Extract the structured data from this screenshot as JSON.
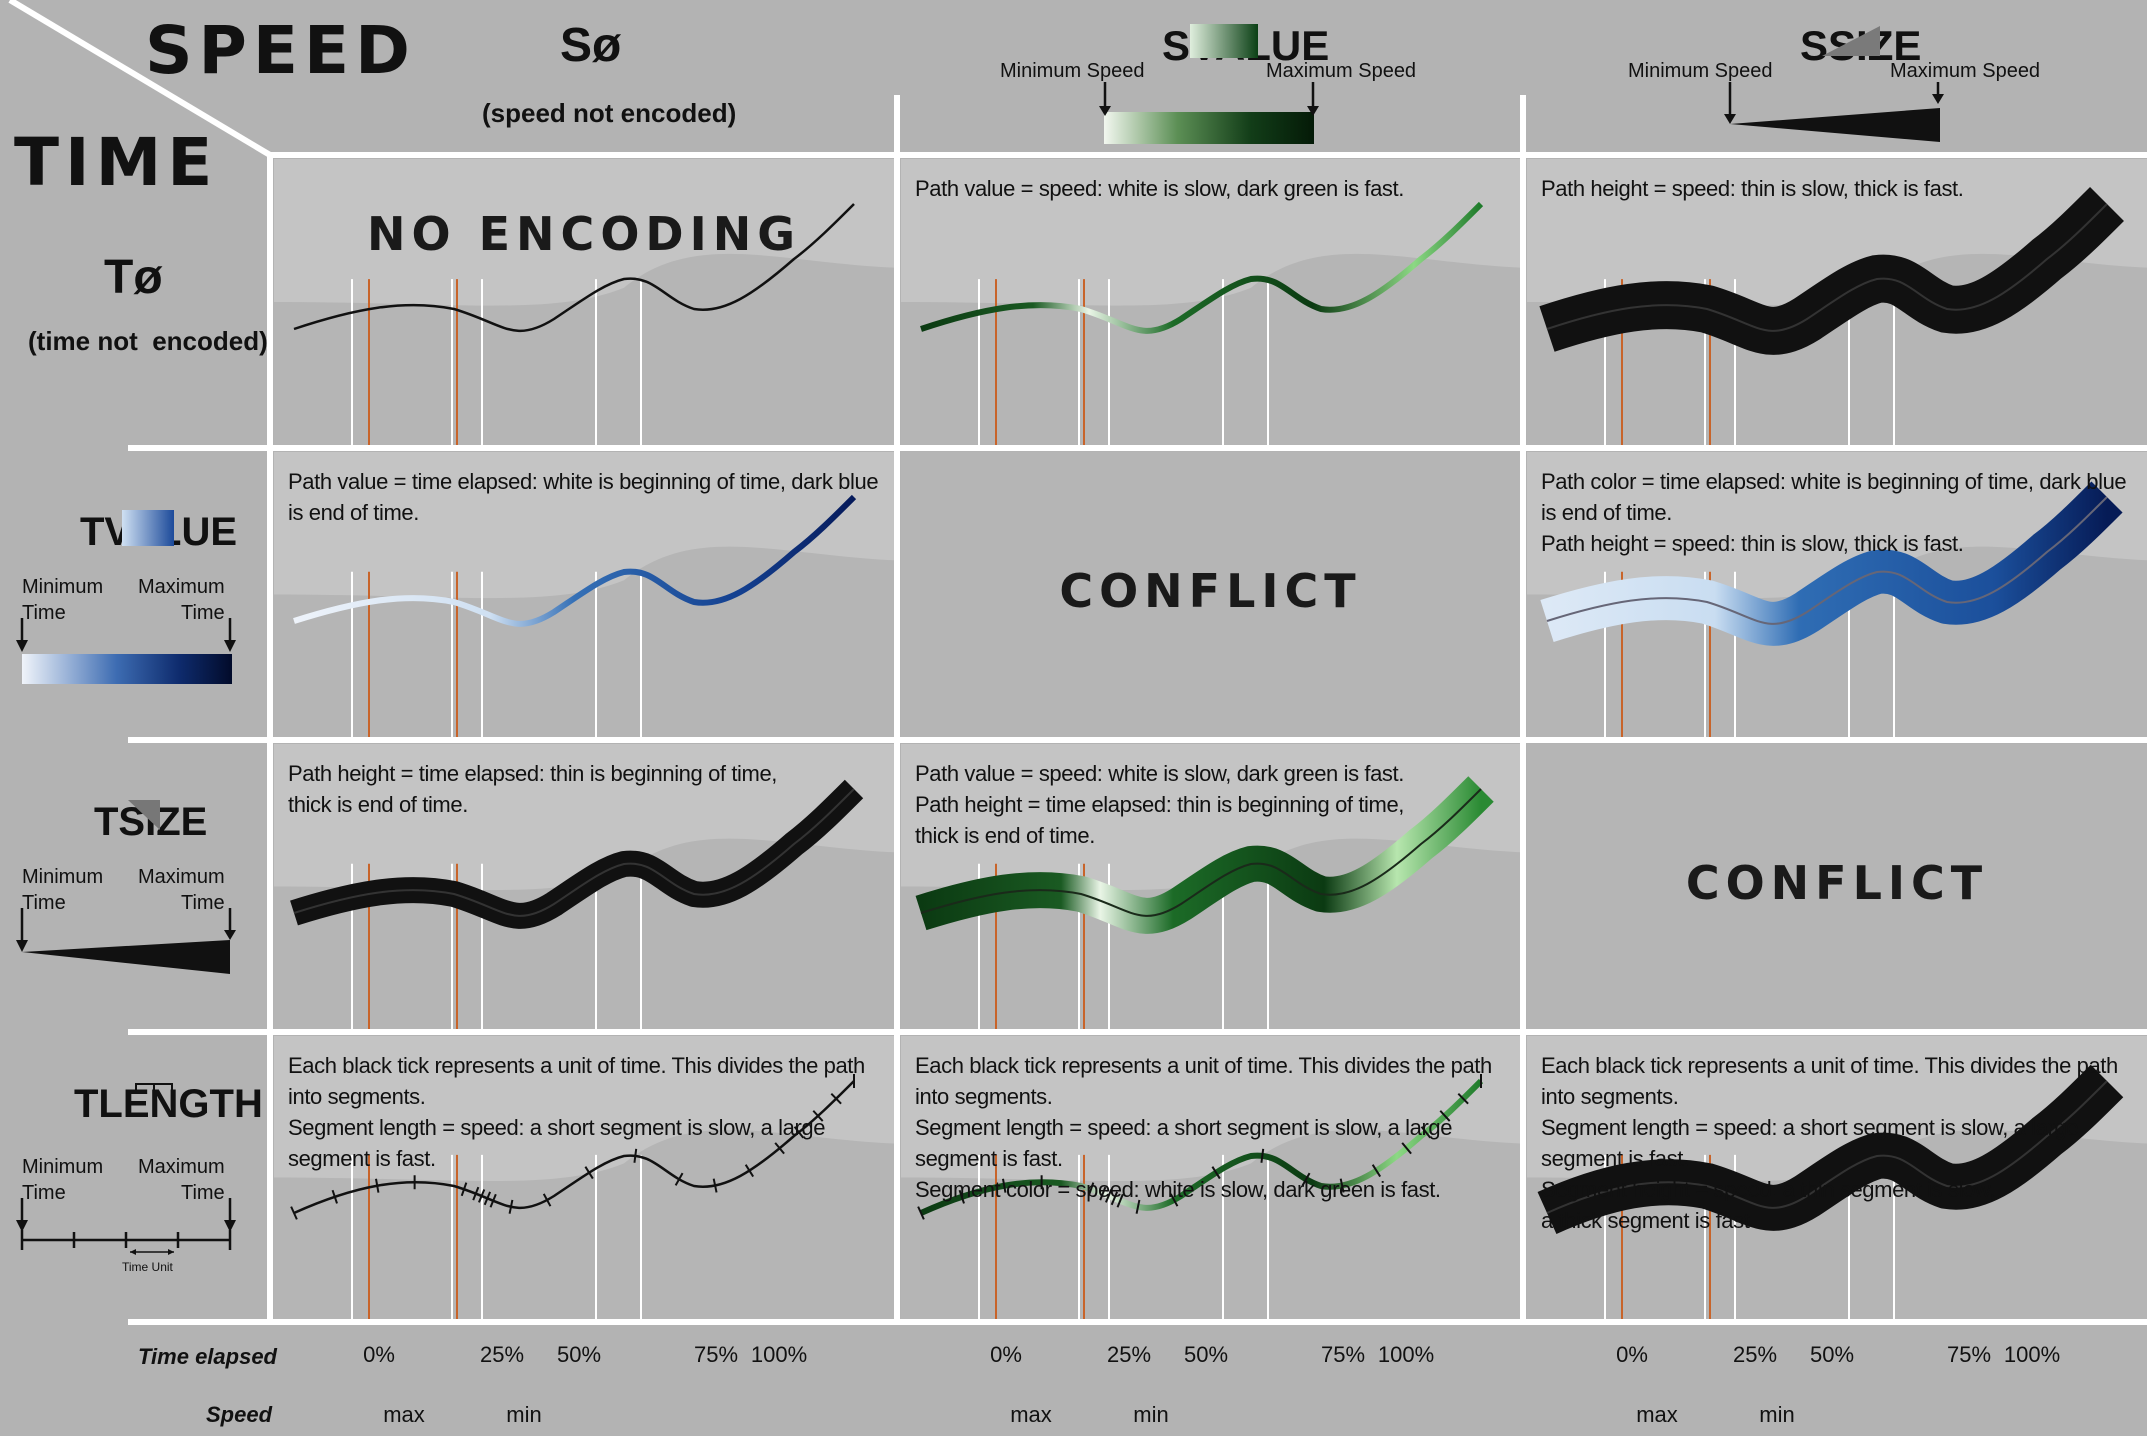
{
  "corner": {
    "speed": "SPEED",
    "time": "TIME"
  },
  "columns": [
    {
      "symbol": "Sø",
      "subtitle": "(speed not encoded)"
    },
    {
      "symbol": "SVALUE",
      "min_label": "Minimum Speed",
      "max_label": "Maximum Speed"
    },
    {
      "symbol": "SSIZE",
      "min_label": "Minimum Speed",
      "max_label": "Maximum Speed"
    }
  ],
  "rows": [
    {
      "symbol": "Tø",
      "subtitle": "(time not  encoded)"
    },
    {
      "symbol": "TVALUE",
      "min_label": "Minimum\nTime",
      "max_label": "Maximum\nTime"
    },
    {
      "symbol": "TSIZE",
      "min_label": "Minimum\nTime",
      "max_label": "Maximum\nTime"
    },
    {
      "symbol": "TLENGTH",
      "min_label": "Minimum\nTime",
      "max_label": "Maximum\nTime",
      "unit_label": "Time Unit"
    }
  ],
  "cells": {
    "r0c0": {
      "title": "NO ENCODING"
    },
    "r0c1": {
      "text": "Path value = speed: white is slow, dark green is fast."
    },
    "r0c2": {
      "text": "Path height = speed: thin is slow, thick is fast."
    },
    "r1c0": {
      "text": "Path value = time elapsed: white is beginning of time, dark blue is end of time."
    },
    "r1c1": {
      "title": "CONFLICT"
    },
    "r1c2": {
      "text": "Path color = time elapsed: white is beginning of time, dark blue is end of time.\nPath height = speed: thin is slow, thick is fast."
    },
    "r2c0": {
      "text": "Path height = time elapsed: thin is beginning of time,\nthick is end of time."
    },
    "r2c1": {
      "text": "Path value = speed: white is slow, dark green is fast.\nPath height = time elapsed: thin is beginning of time,\nthick is end of time."
    },
    "r2c2": {
      "title": "CONFLICT"
    },
    "r3c0": {
      "text": "Each black tick represents a unit of time. This divides the path into segments.\nSegment length = speed: a short segment is slow, a large segment is fast."
    },
    "r3c1": {
      "text": "Each black tick represents a unit of time. This divides the path into segments.\nSegment length = speed: a short segment is slow, a large segment is fast.\nSegment color = speed: white is slow, dark green is fast."
    },
    "r3c2": {
      "text": "Each black tick represents a unit of time. This divides the path into segments.\nSegment length = speed: a short segment is slow, a large segment is fast.\nSegment height = speed: a thin segment is slow,\na thick segment is fast"
    }
  },
  "footer": {
    "time_label": "Time elapsed",
    "speed_label": "Speed",
    "time_ticks": [
      "0%",
      "25%",
      "50%",
      "75%",
      "100%"
    ],
    "speed_ticks": [
      "max",
      "min"
    ]
  },
  "colors": {
    "background": "#b3b3b3",
    "grid": "#ffffff",
    "orange": "#c8642a",
    "green_dark": "#0b3a12",
    "blue_dark": "#0a1f5c"
  }
}
